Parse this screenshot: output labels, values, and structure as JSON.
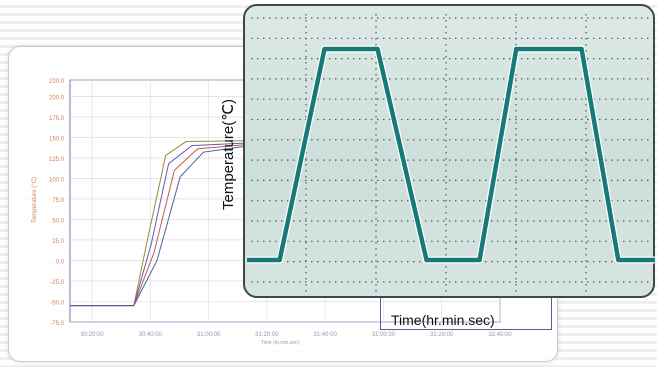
{
  "chart_data": [
    {
      "type": "line",
      "ylabel": "Temperature (°C)",
      "xlabel": "Time (hr.min.sec)",
      "y_ticks": [
        "220.0",
        "200.0",
        "175.0",
        "150.0",
        "125.0",
        "100.0",
        "75.0",
        "50.0",
        "25.0",
        "0.0",
        "-25.0",
        "-50.0",
        "-75.0"
      ],
      "x_ticks": [
        "30:20:00",
        "30:40:00",
        "31:00:00",
        "31:20:00",
        "31:40:00",
        "31:00:30",
        "32:20:00",
        "32:40:00"
      ],
      "ylim": [
        -75,
        220
      ],
      "grid": true,
      "series": [
        {
          "x": [
            0,
            0.22,
            0.27,
            0.33,
            0.4,
            0.6,
            0.7
          ],
          "y": [
            -55,
            -55,
            30,
            128,
            145,
            146,
            146
          ]
        },
        {
          "x": [
            0,
            0.22,
            0.28,
            0.34,
            0.42,
            0.6,
            0.7
          ],
          "y": [
            -55,
            -55,
            20,
            118,
            140,
            143,
            144
          ]
        },
        {
          "x": [
            0,
            0.22,
            0.29,
            0.36,
            0.44,
            0.6,
            0.7
          ],
          "y": [
            -55,
            -55,
            10,
            110,
            136,
            141,
            142
          ]
        },
        {
          "x": [
            0,
            0.22,
            0.3,
            0.38,
            0.46,
            0.6,
            0.7
          ],
          "y": [
            -55,
            -55,
            0,
            102,
            132,
            139,
            141
          ]
        }
      ]
    },
    {
      "type": "line",
      "ylabel": "Temperature(℃)",
      "xlabel": "Time(hr.min.sec)",
      "grid": true,
      "series": [
        {
          "x": [
            0,
            0.08,
            0.19,
            0.32,
            0.44,
            0.57,
            0.66,
            0.82,
            0.91,
            1.0
          ],
          "y": [
            0,
            0,
            1,
            1,
            0,
            0,
            1,
            1,
            0,
            0
          ]
        }
      ]
    }
  ],
  "colors": {
    "front_line": "#157a78",
    "back_axis_text": "#d08060",
    "back_frame": "#7070b0",
    "series": [
      "#9a8a40",
      "#6a5ab0",
      "#c05858",
      "#50609a"
    ]
  }
}
